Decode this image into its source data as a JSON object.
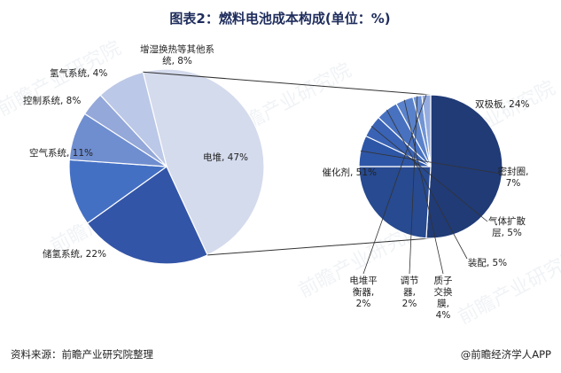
{
  "title": "图表2：燃料电池成本构成(单位：%)",
  "source": "资料来源：前瞻产业研究院整理",
  "brand": "@前瞻经济学人APP",
  "watermark": "前瞻产业研究院",
  "chart_data": [
    {
      "type": "pie",
      "name": "fuel-cell-cost",
      "series": [
        {
          "label": "电堆",
          "value": 47,
          "display": "电堆, 47%",
          "color": "#d4dbed"
        },
        {
          "label": "储氢系统",
          "value": 22,
          "display": "储氢系统, 22%",
          "color": "#3355a8"
        },
        {
          "label": "空气系统",
          "value": 11,
          "display": "空气系统, 11%",
          "color": "#4470c4"
        },
        {
          "label": "控制系统",
          "value": 8,
          "display": "控制系统, 8%",
          "color": "#6f8ed0"
        },
        {
          "label": "氢气系统",
          "value": 4,
          "display": "氢气系统, 4%",
          "color": "#94a8d9"
        },
        {
          "label": "增湿换热等其他系统",
          "value": 8,
          "display": "增湿换热等其他系\n统, 8%",
          "color": "#bcc8e7"
        }
      ]
    },
    {
      "type": "pie",
      "name": "stack-cost",
      "series": [
        {
          "label": "催化剂",
          "value": 51,
          "display": "催化剂, 51%",
          "color": "#203b76"
        },
        {
          "label": "双极板",
          "value": 24,
          "display": "双极板, 24%",
          "color": "#274a90"
        },
        {
          "label": "密封圈",
          "value": 7,
          "display": "密封圈,\n7%",
          "color": "#2e56a6"
        },
        {
          "label": "气体扩散层",
          "value": 5,
          "display": "气体扩散\n层, 5%",
          "color": "#3a63b5"
        },
        {
          "label": "装配",
          "value": 5,
          "display": "装配, 5%",
          "color": "#4871c0"
        },
        {
          "label": "质子交换膜",
          "value": 4,
          "display": "质子\n交换\n膜,\n4%",
          "color": "#5a82cb"
        },
        {
          "label": "调节器",
          "value": 2,
          "display": "调节\n器,\n2%",
          "color": "#7194d5"
        },
        {
          "label": "电堆平衡器",
          "value": 2,
          "display": "电堆平\n衡器,\n2%",
          "color": "#94acdf"
        }
      ]
    }
  ]
}
